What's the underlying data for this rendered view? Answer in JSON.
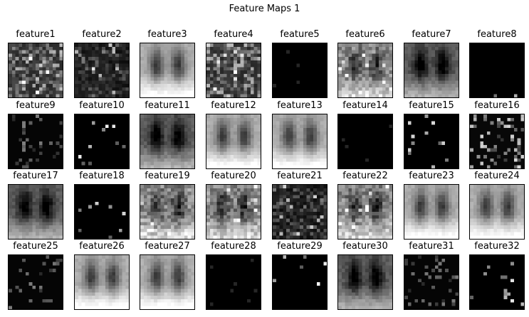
{
  "figure": {
    "title": "Feature Maps 1",
    "features": [
      {
        "label": "feature1",
        "pattern": "noisy-bright"
      },
      {
        "label": "feature2",
        "pattern": "noisy-dark"
      },
      {
        "label": "feature3",
        "pattern": "chest-bright"
      },
      {
        "label": "feature4",
        "pattern": "noisy-bright"
      },
      {
        "label": "feature5",
        "pattern": "black"
      },
      {
        "label": "feature6",
        "pattern": "chest-noisy"
      },
      {
        "label": "feature7",
        "pattern": "chest-dark"
      },
      {
        "label": "feature8",
        "pattern": "sparse"
      },
      {
        "label": "feature9",
        "pattern": "sparse-dim"
      },
      {
        "label": "feature10",
        "pattern": "sparse"
      },
      {
        "label": "feature11",
        "pattern": "chest-dark"
      },
      {
        "label": "feature12",
        "pattern": "chest-bright"
      },
      {
        "label": "feature13",
        "pattern": "chest-bright"
      },
      {
        "label": "feature14",
        "pattern": "black"
      },
      {
        "label": "feature15",
        "pattern": "sparse"
      },
      {
        "label": "feature16",
        "pattern": "sparse-dots"
      },
      {
        "label": "feature17",
        "pattern": "chest-dark"
      },
      {
        "label": "feature18",
        "pattern": "sparse"
      },
      {
        "label": "feature19",
        "pattern": "chest-noisy"
      },
      {
        "label": "feature20",
        "pattern": "chest-noisy"
      },
      {
        "label": "feature21",
        "pattern": "noisy-dark"
      },
      {
        "label": "feature22",
        "pattern": "chest-noisy"
      },
      {
        "label": "feature23",
        "pattern": "chest-bright"
      },
      {
        "label": "feature24",
        "pattern": "chest-bright"
      },
      {
        "label": "feature25",
        "pattern": "sparse-dim"
      },
      {
        "label": "feature26",
        "pattern": "chest-bright"
      },
      {
        "label": "feature27",
        "pattern": "chest-bright"
      },
      {
        "label": "feature28",
        "pattern": "black"
      },
      {
        "label": "feature29",
        "pattern": "sparse"
      },
      {
        "label": "feature30",
        "pattern": "chest-dark"
      },
      {
        "label": "feature31",
        "pattern": "sparse-dim"
      },
      {
        "label": "feature32",
        "pattern": "sparse"
      }
    ]
  }
}
